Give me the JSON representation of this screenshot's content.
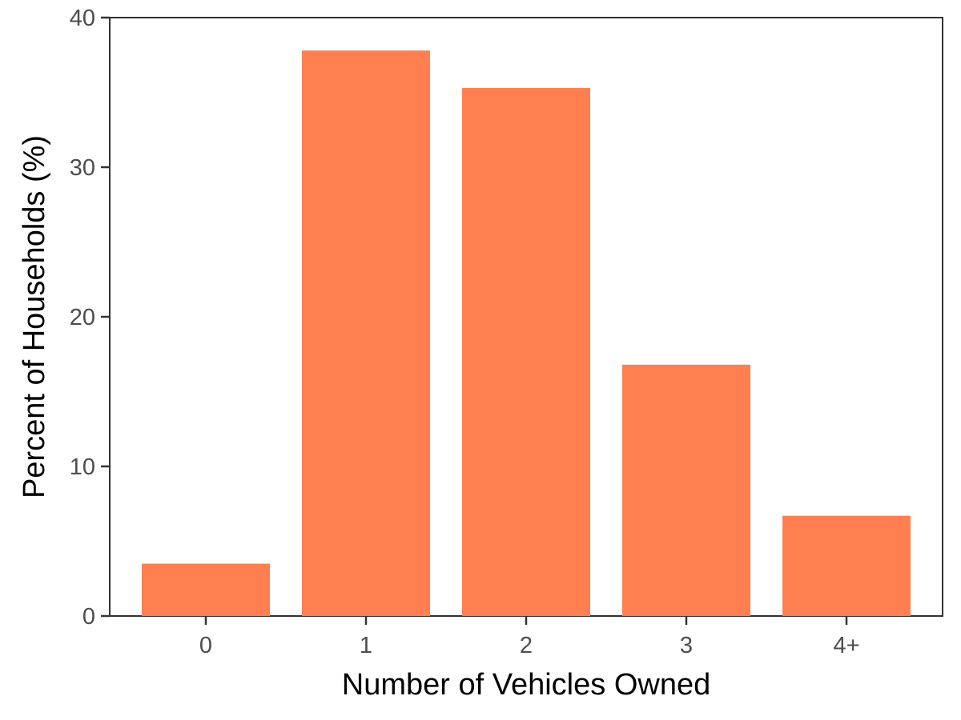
{
  "chart_data": {
    "type": "bar",
    "title": "",
    "xlabel": "Number of Vehicles Owned",
    "ylabel": "Percent of Households (%)",
    "categories": [
      "0",
      "1",
      "2",
      "3",
      "4+"
    ],
    "values": [
      3.5,
      37.8,
      35.3,
      16.8,
      6.7
    ],
    "ylim": [
      0,
      40
    ],
    "yticks": [
      0,
      10,
      20,
      30,
      40
    ],
    "bar_color": "#FF7F50",
    "grid": false,
    "legend": "none"
  }
}
